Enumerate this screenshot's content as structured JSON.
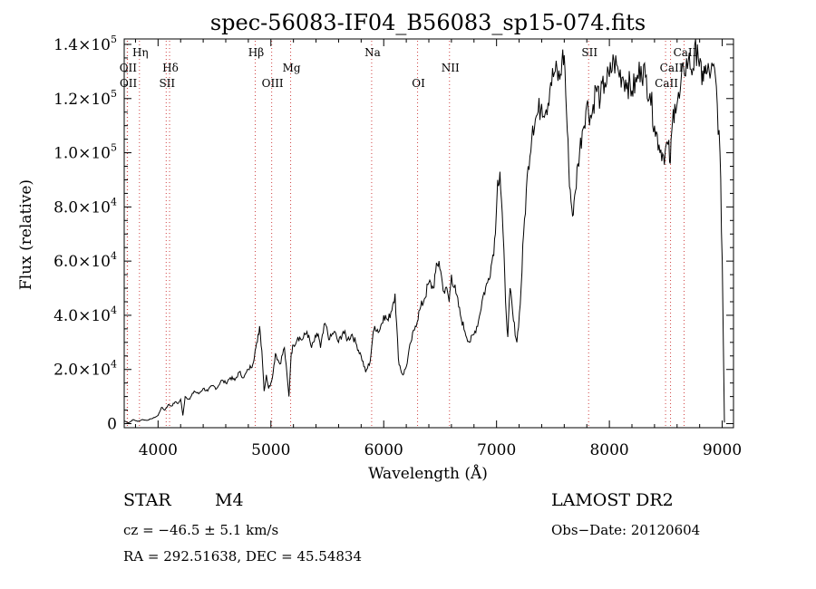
{
  "chart_data": {
    "type": "line",
    "title": "spec-56083-IF04_B56083_sp15-074.fits",
    "xlabel": "Wavelength (Å)",
    "ylabel": "Flux (relative)",
    "xlim": [
      3700,
      9100
    ],
    "ylim": [
      -1500,
      142000
    ],
    "x_ticks": [
      {
        "value": 4000,
        "label": "4000"
      },
      {
        "value": 5000,
        "label": "5000"
      },
      {
        "value": 6000,
        "label": "6000"
      },
      {
        "value": 7000,
        "label": "7000"
      },
      {
        "value": 8000,
        "label": "8000"
      },
      {
        "value": 9000,
        "label": "9000"
      }
    ],
    "y_ticks": [
      {
        "value": 0,
        "mant": "0",
        "exp": ""
      },
      {
        "value": 20000,
        "mant": "2.0×10",
        "exp": "4"
      },
      {
        "value": 40000,
        "mant": "4.0×10",
        "exp": "4"
      },
      {
        "value": 60000,
        "mant": "6.0×10",
        "exp": "4"
      },
      {
        "value": 80000,
        "mant": "8.0×10",
        "exp": "4"
      },
      {
        "value": 100000,
        "mant": "1.0×10",
        "exp": "5"
      },
      {
        "value": 120000,
        "mant": "1.2×10",
        "exp": "5"
      },
      {
        "value": 140000,
        "mant": "1.4×10",
        "exp": "5"
      }
    ],
    "grid": false,
    "spectrum": {
      "x": [
        3700,
        3740,
        3780,
        3820,
        3860,
        3900,
        3940,
        3980,
        4000,
        4030,
        4060,
        4090,
        4120,
        4150,
        4180,
        4200,
        4220,
        4240,
        4280,
        4320,
        4360,
        4400,
        4440,
        4480,
        4520,
        4560,
        4600,
        4640,
        4680,
        4720,
        4760,
        4800,
        4840,
        4860,
        4880,
        4900,
        4920,
        4940,
        4960,
        4980,
        5000,
        5020,
        5040,
        5080,
        5120,
        5160,
        5180,
        5200,
        5240,
        5280,
        5320,
        5360,
        5400,
        5420,
        5440,
        5480,
        5520,
        5560,
        5600,
        5640,
        5680,
        5720,
        5760,
        5800,
        5840,
        5880,
        5900,
        5920,
        5960,
        6000,
        6040,
        6080,
        6100,
        6130,
        6150,
        6170,
        6200,
        6240,
        6280,
        6320,
        6360,
        6400,
        6440,
        6460,
        6490,
        6520,
        6540,
        6560,
        6580,
        6600,
        6640,
        6680,
        6720,
        6760,
        6800,
        6840,
        6880,
        6920,
        6960,
        6990,
        7000,
        7010,
        7030,
        7050,
        7080,
        7100,
        7120,
        7150,
        7180,
        7210,
        7240,
        7280,
        7320,
        7360,
        7400,
        7440,
        7480,
        7520,
        7560,
        7580,
        7600,
        7620,
        7640,
        7660,
        7680,
        7700,
        7720,
        7760,
        7800,
        7840,
        7880,
        7920,
        7960,
        8000,
        8040,
        8080,
        8120,
        8160,
        8200,
        8240,
        8280,
        8320,
        8360,
        8400,
        8440,
        8480,
        8520,
        8540,
        8560,
        8580,
        8620,
        8660,
        8700,
        8740,
        8780,
        8820,
        8840,
        8860,
        8900,
        8940,
        8980,
        9000,
        9020
      ],
      "flux": [
        1000,
        300,
        1500,
        800,
        1500,
        1200,
        1800,
        2500,
        3000,
        6000,
        5000,
        7000,
        6500,
        8000,
        7500,
        9000,
        3000,
        10000,
        9000,
        12000,
        11000,
        13000,
        12000,
        14000,
        13000,
        16000,
        15000,
        17000,
        16000,
        19000,
        17000,
        20000,
        22000,
        27000,
        30000,
        36000,
        27000,
        12000,
        18000,
        13000,
        15000,
        19000,
        26000,
        22000,
        28000,
        10000,
        26000,
        29000,
        32000,
        31000,
        34000,
        28000,
        32000,
        33000,
        28000,
        37000,
        31000,
        34000,
        30000,
        34000,
        31000,
        33000,
        29000,
        25000,
        19000,
        23000,
        31000,
        36000,
        34000,
        40000,
        38000,
        44000,
        48000,
        24000,
        20000,
        18000,
        21000,
        30000,
        36000,
        42000,
        46000,
        52000,
        50000,
        56000,
        60000,
        52000,
        48000,
        50000,
        45000,
        55000,
        48000,
        40000,
        34000,
        30000,
        33000,
        38000,
        47000,
        52000,
        60000,
        70000,
        80000,
        90000,
        93000,
        78000,
        45000,
        32000,
        50000,
        38000,
        30000,
        44000,
        70000,
        95000,
        110000,
        114000,
        118000,
        116000,
        126000,
        130000,
        127000,
        134000,
        136000,
        115000,
        95000,
        82000,
        77000,
        86000,
        96000,
        108000,
        118000,
        113000,
        124000,
        120000,
        126000,
        128000,
        134000,
        130000,
        128000,
        126000,
        123000,
        126000,
        132000,
        128000,
        122000,
        110000,
        103000,
        99000,
        103000,
        96000,
        112000,
        118000,
        120000,
        131000,
        134000,
        131000,
        140000,
        125000,
        132000,
        129000,
        130000,
        128000,
        100000,
        60000,
        400
      ]
    },
    "lines": [
      {
        "name": "Hη",
        "x": 3835,
        "row": 0
      },
      {
        "name": "OII",
        "x": 3727,
        "row": 1
      },
      {
        "name": "OII",
        "x": 3729,
        "row": 2
      },
      {
        "name": "Hδ",
        "x": 4102,
        "row": 1
      },
      {
        "name": "SII",
        "x": 4072,
        "row": 2
      },
      {
        "name": "Hβ",
        "x": 4861,
        "row": 0
      },
      {
        "name": "Mg",
        "x": 5175,
        "row": 1
      },
      {
        "name": "OIII",
        "x": 5007,
        "row": 2
      },
      {
        "name": "Na",
        "x": 5893,
        "row": 0
      },
      {
        "name": "OI",
        "x": 6300,
        "row": 2
      },
      {
        "name": "NII",
        "x": 6583,
        "row": 1
      },
      {
        "name": "SII",
        "x": 7816,
        "row": 0
      },
      {
        "name": "CaII",
        "x": 8662,
        "row": 0
      },
      {
        "name": "CaII",
        "x": 8542,
        "row": 1
      },
      {
        "name": "CaII",
        "x": 8498,
        "row": 2
      }
    ]
  },
  "info": {
    "object_class": "STAR",
    "subclass": "M4",
    "survey": "LAMOST DR2",
    "velocity": "cz = −46.5 ± 5.1 km/s",
    "obs_date": "Obs−Date: 20120604",
    "coords": "RA = 292.51638, DEC =  45.54834"
  }
}
